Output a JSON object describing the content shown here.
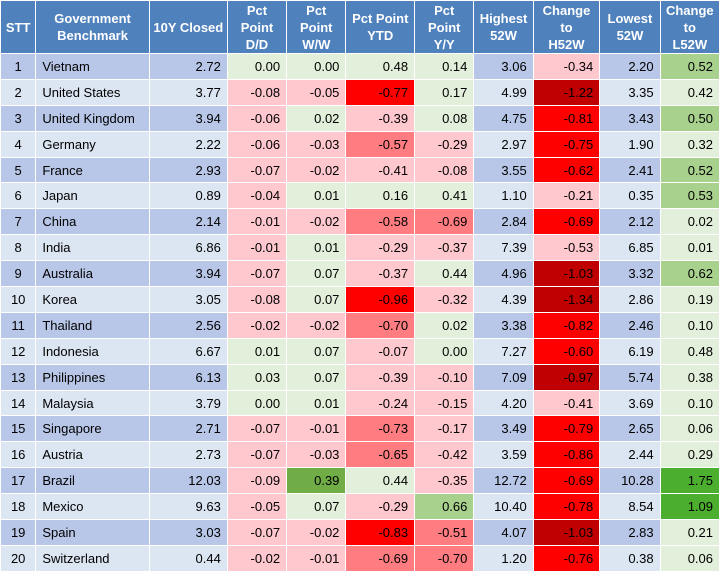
{
  "headers": {
    "stt": "STT",
    "benchmark_line1": "Government",
    "benchmark_line2": "Benchmark",
    "closed": "10Y Closed",
    "dd_line1": "Pct",
    "dd_line2": "Point",
    "dd_line3": "D/D",
    "ww_line1": "Pct",
    "ww_line2": "Point",
    "ww_line3": "W/W",
    "ytd_line1": "Pct Point",
    "ytd_line2": "YTD",
    "yy_line1": "Pct",
    "yy_line2": "Point",
    "yy_line3": "Y/Y",
    "h52_line1": "Highest",
    "h52_line2": "52W",
    "ch52_line1": "Change",
    "ch52_line2": "to",
    "ch52_line3": "H52W",
    "l52_line1": "Lowest",
    "l52_line2": "52W",
    "cl52_line1": "Change",
    "cl52_line2": "to",
    "cl52_line3": "L52W"
  },
  "rows": [
    {
      "stt": "1",
      "country": "Vietnam",
      "closed": "2.72",
      "dd": "0.00",
      "ww": "0.00",
      "ytd": "0.48",
      "yy": "0.14",
      "h52": "3.06",
      "ch52": "-0.34",
      "l52": "2.20",
      "cl52": "0.52"
    },
    {
      "stt": "2",
      "country": "United States",
      "closed": "3.77",
      "dd": "-0.08",
      "ww": "-0.05",
      "ytd": "-0.77",
      "yy": "0.17",
      "h52": "4.99",
      "ch52": "-1.22",
      "l52": "3.35",
      "cl52": "0.42"
    },
    {
      "stt": "3",
      "country": "United Kingdom",
      "closed": "3.94",
      "dd": "-0.06",
      "ww": "0.02",
      "ytd": "-0.39",
      "yy": "0.08",
      "h52": "4.75",
      "ch52": "-0.81",
      "l52": "3.43",
      "cl52": "0.50"
    },
    {
      "stt": "4",
      "country": "Germany",
      "closed": "2.22",
      "dd": "-0.06",
      "ww": "-0.03",
      "ytd": "-0.57",
      "yy": "-0.29",
      "h52": "2.97",
      "ch52": "-0.75",
      "l52": "1.90",
      "cl52": "0.32"
    },
    {
      "stt": "5",
      "country": "France",
      "closed": "2.93",
      "dd": "-0.07",
      "ww": "-0.02",
      "ytd": "-0.41",
      "yy": "-0.08",
      "h52": "3.55",
      "ch52": "-0.62",
      "l52": "2.41",
      "cl52": "0.52"
    },
    {
      "stt": "6",
      "country": "Japan",
      "closed": "0.89",
      "dd": "-0.04",
      "ww": "0.01",
      "ytd": "0.16",
      "yy": "0.41",
      "h52": "1.10",
      "ch52": "-0.21",
      "l52": "0.35",
      "cl52": "0.53"
    },
    {
      "stt": "7",
      "country": "China",
      "closed": "2.14",
      "dd": "-0.01",
      "ww": "-0.02",
      "ytd": "-0.58",
      "yy": "-0.69",
      "h52": "2.84",
      "ch52": "-0.69",
      "l52": "2.12",
      "cl52": "0.02"
    },
    {
      "stt": "8",
      "country": "India",
      "closed": "6.86",
      "dd": "-0.01",
      "ww": "0.01",
      "ytd": "-0.29",
      "yy": "-0.37",
      "h52": "7.39",
      "ch52": "-0.53",
      "l52": "6.85",
      "cl52": "0.01"
    },
    {
      "stt": "9",
      "country": "Australia",
      "closed": "3.94",
      "dd": "-0.07",
      "ww": "0.07",
      "ytd": "-0.37",
      "yy": "0.44",
      "h52": "4.96",
      "ch52": "-1.03",
      "l52": "3.32",
      "cl52": "0.62"
    },
    {
      "stt": "10",
      "country": "Korea",
      "closed": "3.05",
      "dd": "-0.08",
      "ww": "0.07",
      "ytd": "-0.96",
      "yy": "-0.32",
      "h52": "4.39",
      "ch52": "-1.34",
      "l52": "2.86",
      "cl52": "0.19"
    },
    {
      "stt": "11",
      "country": "Thailand",
      "closed": "2.56",
      "dd": "-0.02",
      "ww": "-0.02",
      "ytd": "-0.70",
      "yy": "0.02",
      "h52": "3.38",
      "ch52": "-0.82",
      "l52": "2.46",
      "cl52": "0.10"
    },
    {
      "stt": "12",
      "country": "Indonesia",
      "closed": "6.67",
      "dd": "0.01",
      "ww": "0.07",
      "ytd": "-0.07",
      "yy": "0.00",
      "h52": "7.27",
      "ch52": "-0.60",
      "l52": "6.19",
      "cl52": "0.48"
    },
    {
      "stt": "13",
      "country": "Philippines",
      "closed": "6.13",
      "dd": "0.03",
      "ww": "0.07",
      "ytd": "-0.39",
      "yy": "-0.10",
      "h52": "7.09",
      "ch52": "-0.97",
      "l52": "5.74",
      "cl52": "0.38"
    },
    {
      "stt": "14",
      "country": "Malaysia",
      "closed": "3.79",
      "dd": "0.00",
      "ww": "0.01",
      "ytd": "-0.24",
      "yy": "-0.15",
      "h52": "4.20",
      "ch52": "-0.41",
      "l52": "3.69",
      "cl52": "0.10"
    },
    {
      "stt": "15",
      "country": "Singapore",
      "closed": "2.71",
      "dd": "-0.07",
      "ww": "-0.01",
      "ytd": "-0.73",
      "yy": "-0.17",
      "h52": "3.49",
      "ch52": "-0.79",
      "l52": "2.65",
      "cl52": "0.06"
    },
    {
      "stt": "16",
      "country": "Austria",
      "closed": "2.73",
      "dd": "-0.07",
      "ww": "-0.03",
      "ytd": "-0.65",
      "yy": "-0.42",
      "h52": "3.59",
      "ch52": "-0.86",
      "l52": "2.44",
      "cl52": "0.29"
    },
    {
      "stt": "17",
      "country": "Brazil",
      "closed": "12.03",
      "dd": "-0.09",
      "ww": "0.39",
      "ytd": "0.44",
      "yy": "-0.35",
      "h52": "12.72",
      "ch52": "-0.69",
      "l52": "10.28",
      "cl52": "1.75"
    },
    {
      "stt": "18",
      "country": "Mexico",
      "closed": "9.63",
      "dd": "-0.05",
      "ww": "0.07",
      "ytd": "-0.29",
      "yy": "0.66",
      "h52": "10.40",
      "ch52": "-0.78",
      "l52": "8.54",
      "cl52": "1.09"
    },
    {
      "stt": "19",
      "country": "Spain",
      "closed": "3.03",
      "dd": "-0.07",
      "ww": "-0.02",
      "ytd": "-0.83",
      "yy": "-0.51",
      "h52": "4.07",
      "ch52": "-1.03",
      "l52": "2.83",
      "cl52": "0.21"
    },
    {
      "stt": "20",
      "country": "Switzerland",
      "closed": "0.44",
      "dd": "-0.02",
      "ww": "-0.01",
      "ytd": "-0.69",
      "yy": "-0.70",
      "h52": "1.20",
      "ch52": "-0.76",
      "l52": "0.38",
      "cl52": "0.06"
    }
  ],
  "colors": {
    "header_bg": "#4f81bd",
    "row_odd_bg": "#b8c7e8",
    "row_even_bg": "#dce6f2",
    "neg_light": "#ffc7ce",
    "neg_mid": "#ff7c80",
    "neg_strong": "#ff0000",
    "neg_darkest": "#c00000",
    "pos_light": "#e2efda",
    "pos_mid": "#a9d18e",
    "pos_strong": "#70ad47",
    "pos_darkest": "#4cae2f"
  }
}
